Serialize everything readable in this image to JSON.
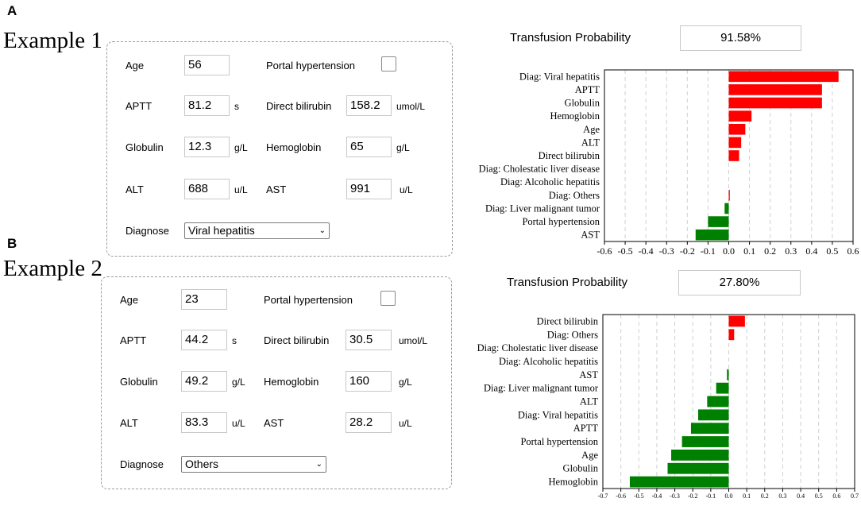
{
  "colors": {
    "positive": "#ff0000",
    "negative": "#008000",
    "grid": "#d0d0d0"
  },
  "panels": [
    {
      "letter": "A",
      "title": "Example  1",
      "form": {
        "age_label": "Age",
        "age_value": "56",
        "portal_label": "Portal hypertension",
        "aptt_label": "APTT",
        "aptt_value": "81.2",
        "aptt_unit": "s",
        "dbil_label": "Direct bilirubin",
        "dbil_value": "158.2",
        "dbil_unit": "umol/L",
        "glob_label": "Globulin",
        "glob_value": "12.3",
        "glob_unit": "g/L",
        "hgb_label": "Hemoglobin",
        "hgb_value": "65",
        "hgb_unit": "g/L",
        "alt_label": "ALT",
        "alt_value": "688",
        "alt_unit": "u/L",
        "ast_label": "AST",
        "ast_value": "991",
        "ast_unit": "u/L",
        "diag_label": "Diagnose",
        "diag_value": "Viral hepatitis"
      },
      "prob_label": "Transfusion Probability",
      "prob_value": "91.58%"
    },
    {
      "letter": "B",
      "title": "Example  2",
      "form": {
        "age_label": "Age",
        "age_value": "23",
        "portal_label": "Portal hypertension",
        "aptt_label": "APTT",
        "aptt_value": "44.2",
        "aptt_unit": "s",
        "dbil_label": "Direct bilirubin",
        "dbil_value": "30.5",
        "dbil_unit": "umol/L",
        "glob_label": "Globulin",
        "glob_value": "49.2",
        "glob_unit": "g/L",
        "hgb_label": "Hemoglobin",
        "hgb_value": "160",
        "hgb_unit": "g/L",
        "alt_label": "ALT",
        "alt_value": "83.3",
        "alt_unit": "u/L",
        "ast_label": "AST",
        "ast_value": "28.2",
        "ast_unit": "u/L",
        "diag_label": "Diagnose",
        "diag_value": "Others"
      },
      "prob_label": "Transfusion Probability",
      "prob_value": "27.80%"
    }
  ],
  "chart_data": [
    {
      "type": "bar",
      "orientation": "horizontal",
      "categories": [
        "Diag: Viral hepatitis",
        "APTT",
        "Globulin",
        "Hemoglobin",
        "Age",
        "ALT",
        "Direct bilirubin",
        "Diag: Cholestatic liver disease",
        "Diag: Alcoholic hepatitis",
        "Diag: Others",
        "Diag: Liver malignant tumor",
        "Portal hypertension",
        "AST"
      ],
      "values": [
        0.53,
        0.45,
        0.45,
        0.11,
        0.08,
        0.06,
        0.05,
        0.0,
        0.0,
        0.005,
        -0.02,
        -0.1,
        -0.16
      ],
      "xlim": [
        -0.6,
        0.6
      ],
      "xticks": [
        "-0.6",
        "-0.5",
        "-0.4",
        "-0.3",
        "-0.2",
        "-0.1",
        "0.0",
        "0.1",
        "0.2",
        "0.3",
        "0.4",
        "0.5",
        "0.6"
      ],
      "grid": "vertical dashed"
    },
    {
      "type": "bar",
      "orientation": "horizontal",
      "categories": [
        "Direct bilirubin",
        "Diag: Others",
        "Diag: Cholestatic liver disease",
        "Diag: Alcoholic hepatitis",
        "AST",
        "Diag: Liver malignant tumor",
        "ALT",
        "Diag: Viral hepatitis",
        "APTT",
        "Portal hypertension",
        "Age",
        "Globulin",
        "Hemoglobin"
      ],
      "values": [
        0.09,
        0.03,
        0.0,
        0.0,
        -0.01,
        -0.07,
        -0.12,
        -0.17,
        -0.21,
        -0.26,
        -0.32,
        -0.34,
        -0.55
      ],
      "xlim": [
        -0.7,
        0.7
      ],
      "xticks": [
        "-0.7",
        "-0.6",
        "-0.5",
        "-0.4",
        "-0.3",
        "-0.2",
        "-0.1",
        "0.0",
        "0.1",
        "0.2",
        "0.3",
        "0.4",
        "0.5",
        "0.6",
        "0.7"
      ],
      "grid": "vertical dashed"
    }
  ]
}
